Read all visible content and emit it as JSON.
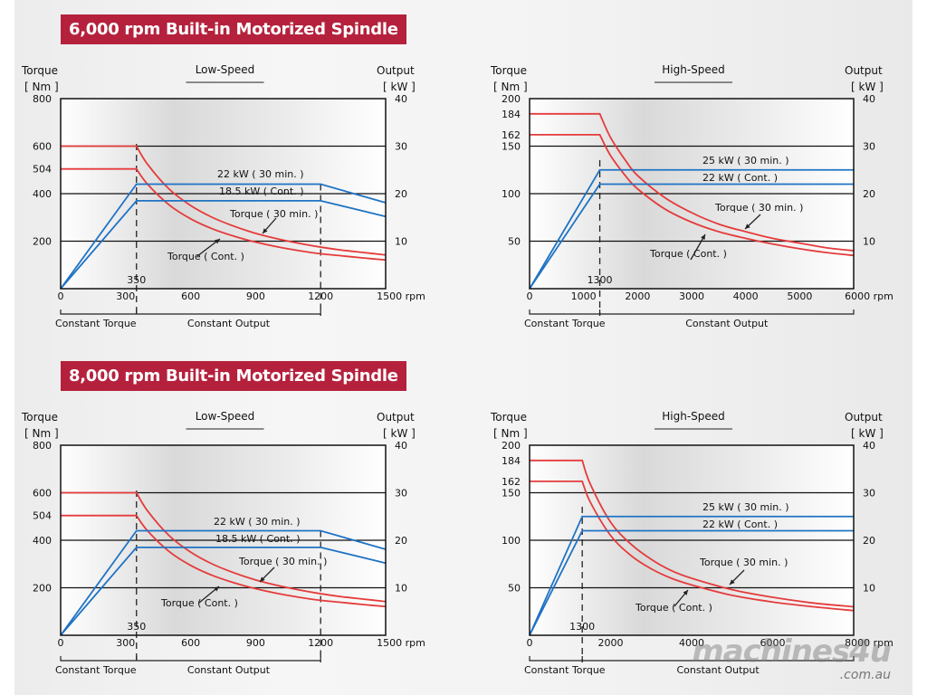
{
  "banners": [
    "6,000 rpm Built-in Motorized Spindle",
    "8,000 rpm Built-in Motorized Spindle"
  ],
  "watermark": {
    "main": "machines4u",
    "sub": ".com.au"
  },
  "colors": {
    "torque": "#e53b3b",
    "output": "#1f73c4",
    "banner": "#b5213d"
  },
  "chart_data": [
    {
      "type": "line",
      "group": "6,000 rpm Built-in Motorized Spindle",
      "title": "Low-Speed",
      "ylabel": "Torque",
      "ylabel_unit": "[ Nm ]",
      "y2label": "Output",
      "y2label_unit": "[ kW ]",
      "xunit": "rpm",
      "xlim": [
        0,
        1500
      ],
      "ylim": [
        0,
        800
      ],
      "y2lim": [
        0,
        40
      ],
      "xticks": [
        0,
        300,
        600,
        900,
        1200,
        1500
      ],
      "yticks": [
        800,
        600,
        504,
        400,
        200
      ],
      "y2ticks": [
        40,
        30,
        20,
        10
      ],
      "gridlines_y": [
        600,
        400,
        200
      ],
      "base_speed": 350,
      "max_const_output_speed": 1200,
      "regions": [
        "Constant Torque",
        "Constant Output"
      ],
      "series": [
        {
          "name": "Torque ( 30 min. )",
          "axis": "torque",
          "x": [
            0,
            350,
            400,
            500,
            600,
            700,
            800,
            900,
            1000,
            1100,
            1200,
            1300,
            1400,
            1500
          ],
          "values": [
            600,
            600,
            525,
            420,
            350,
            300,
            263,
            233,
            210,
            191,
            175,
            162,
            152,
            142
          ]
        },
        {
          "name": "Torque ( Cont. )",
          "axis": "torque",
          "x": [
            0,
            350,
            400,
            500,
            600,
            700,
            800,
            900,
            1000,
            1100,
            1200,
            1300,
            1400,
            1500
          ],
          "values": [
            504,
            504,
            441,
            353,
            294,
            252,
            221,
            196,
            176,
            160,
            147,
            138,
            129,
            121
          ]
        },
        {
          "name": "22 kW ( 30 min. )",
          "axis": "output",
          "x": [
            0,
            350,
            1200,
            1500
          ],
          "values": [
            0,
            22,
            22,
            18.1
          ]
        },
        {
          "name": "18.5 kW ( Cont. )",
          "axis": "output",
          "x": [
            0,
            350,
            1200,
            1500
          ],
          "values": [
            0,
            18.5,
            18.5,
            15.2
          ]
        }
      ],
      "annotations": [
        "22 kW ( 30 min. )",
        "18.5 kW ( Cont. )",
        "Torque ( 30 min. )",
        "Torque ( Cont. )",
        "350"
      ]
    },
    {
      "type": "line",
      "group": "6,000 rpm Built-in Motorized Spindle",
      "title": "High-Speed",
      "ylabel": "Torque",
      "ylabel_unit": "[ Nm ]",
      "y2label": "Output",
      "y2label_unit": "[ kW ]",
      "xunit": "rpm",
      "xlim": [
        0,
        6000
      ],
      "ylim": [
        0,
        200
      ],
      "y2lim": [
        0,
        40
      ],
      "xticks": [
        0,
        1000,
        2000,
        3000,
        4000,
        5000,
        6000
      ],
      "yticks": [
        200,
        184,
        162,
        150,
        100,
        50
      ],
      "y2ticks": [
        40,
        30,
        20,
        10
      ],
      "gridlines_y": [
        150,
        100,
        50
      ],
      "base_speed": 1300,
      "max_const_output_speed": 6000,
      "regions": [
        "Constant Torque",
        "Constant Output"
      ],
      "series": [
        {
          "name": "Torque ( 30 min. )",
          "axis": "torque",
          "x": [
            0,
            1300,
            1500,
            1800,
            2000,
            2500,
            3000,
            3500,
            4000,
            4500,
            5000,
            5500,
            6000
          ],
          "values": [
            184,
            184,
            159,
            133,
            119,
            96,
            80,
            68,
            60,
            53,
            48,
            43,
            40
          ]
        },
        {
          "name": "Torque ( Cont. )",
          "axis": "torque",
          "x": [
            0,
            1300,
            1500,
            1800,
            2000,
            2500,
            3000,
            3500,
            4000,
            4500,
            5000,
            5500,
            6000
          ],
          "values": [
            162,
            162,
            140,
            117,
            105,
            84,
            70,
            60,
            53,
            47,
            42,
            38,
            35
          ]
        },
        {
          "name": "25 kW ( 30 min. )",
          "axis": "output",
          "x": [
            0,
            1300,
            6000
          ],
          "values": [
            0,
            25,
            25
          ]
        },
        {
          "name": "22 kW ( Cont. )",
          "axis": "output",
          "x": [
            0,
            1300,
            6000
          ],
          "values": [
            0,
            22,
            22
          ]
        }
      ],
      "annotations": [
        "25 kW ( 30 min. )",
        "22 kW ( Cont. )",
        "Torque ( 30 min. )",
        "Torque ( Cont. )",
        "1300"
      ]
    },
    {
      "type": "line",
      "group": "8,000 rpm Built-in Motorized Spindle",
      "title": "Low-Speed",
      "ylabel": "Torque",
      "ylabel_unit": "[ Nm ]",
      "y2label": "Output",
      "y2label_unit": "[ kW ]",
      "xunit": "rpm",
      "xlim": [
        0,
        1500
      ],
      "ylim": [
        0,
        800
      ],
      "y2lim": [
        0,
        40
      ],
      "xticks": [
        0,
        300,
        600,
        900,
        1200,
        1500
      ],
      "yticks": [
        800,
        600,
        504,
        400,
        200
      ],
      "y2ticks": [
        40,
        30,
        20,
        10
      ],
      "gridlines_y": [
        600,
        400,
        200
      ],
      "base_speed": 350,
      "max_const_output_speed": 1200,
      "regions": [
        "Constant Torque",
        "Constant Output"
      ],
      "series": [
        {
          "name": "Torque ( 30 min. )",
          "axis": "torque",
          "x": [
            0,
            350,
            400,
            500,
            600,
            700,
            800,
            900,
            1000,
            1100,
            1200,
            1300,
            1400,
            1500
          ],
          "values": [
            600,
            600,
            525,
            420,
            350,
            300,
            263,
            233,
            210,
            191,
            175,
            162,
            152,
            142
          ]
        },
        {
          "name": "Torque ( Cont. )",
          "axis": "torque",
          "x": [
            0,
            350,
            400,
            500,
            600,
            700,
            800,
            900,
            1000,
            1100,
            1200,
            1300,
            1400,
            1500
          ],
          "values": [
            504,
            504,
            441,
            353,
            294,
            252,
            221,
            196,
            176,
            160,
            147,
            138,
            129,
            121
          ]
        },
        {
          "name": "22 kW ( 30 min. )",
          "axis": "output",
          "x": [
            0,
            350,
            1200,
            1500
          ],
          "values": [
            0,
            22,
            22,
            18.1
          ]
        },
        {
          "name": "18.5 kW ( Cont. )",
          "axis": "output",
          "x": [
            0,
            350,
            1200,
            1500
          ],
          "values": [
            0,
            18.5,
            18.5,
            15.2
          ]
        }
      ],
      "annotations": [
        "22 kW ( 30 min. )",
        "18.5 kW ( Cont. )",
        "Torque ( 30 min. )",
        "Torque ( Cont. )",
        "350"
      ]
    },
    {
      "type": "line",
      "group": "8,000 rpm Built-in Motorized Spindle",
      "title": "High-Speed",
      "ylabel": "Torque",
      "ylabel_unit": "[ Nm ]",
      "y2label": "Output",
      "y2label_unit": "[ kW ]",
      "xunit": "rpm",
      "xlim": [
        0,
        8000
      ],
      "ylim": [
        0,
        200
      ],
      "y2lim": [
        0,
        40
      ],
      "xticks": [
        0,
        2000,
        4000,
        6000,
        8000
      ],
      "yticks": [
        200,
        184,
        162,
        150,
        100,
        50
      ],
      "y2ticks": [
        40,
        30,
        20,
        10
      ],
      "gridlines_y": [
        150,
        100,
        50
      ],
      "base_speed": 1300,
      "max_const_output_speed": 8000,
      "regions": [
        "Constant Torque",
        "Constant Output"
      ],
      "series": [
        {
          "name": "Torque ( 30 min. )",
          "axis": "torque",
          "x": [
            0,
            1300,
            1500,
            2000,
            2500,
            3000,
            3500,
            4000,
            5000,
            6000,
            7000,
            8000
          ],
          "values": [
            184,
            184,
            159,
            119,
            96,
            80,
            68,
            60,
            48,
            40,
            34,
            30
          ]
        },
        {
          "name": "Torque ( Cont. )",
          "axis": "torque",
          "x": [
            0,
            1300,
            1500,
            2000,
            2500,
            3000,
            3500,
            4000,
            5000,
            6000,
            7000,
            8000
          ],
          "values": [
            162,
            162,
            140,
            105,
            84,
            70,
            60,
            53,
            42,
            35,
            30,
            26
          ]
        },
        {
          "name": "25 kW ( 30 min. )",
          "axis": "output",
          "x": [
            0,
            1300,
            8000
          ],
          "values": [
            0,
            25,
            25
          ]
        },
        {
          "name": "22 kW ( Cont. )",
          "axis": "output",
          "x": [
            0,
            1300,
            8000
          ],
          "values": [
            0,
            22,
            22
          ]
        }
      ],
      "annotations": [
        "25 kW ( 30 min. )",
        "22 kW ( Cont. )",
        "Torque ( 30 min. )",
        "Torque ( Cont. )",
        "1300"
      ]
    }
  ]
}
